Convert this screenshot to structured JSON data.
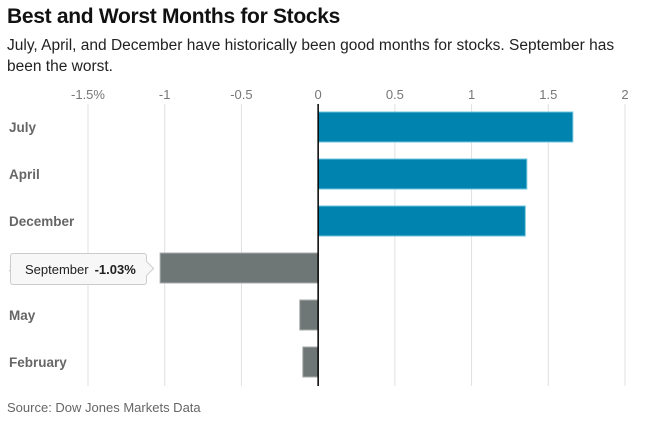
{
  "chart_data": {
    "type": "bar",
    "orientation": "horizontal",
    "title": "Best and Worst Months for Stocks",
    "subtitle": "July, April, and December have historically been good months for stocks. September has been the worst.",
    "source": "Source: Dow Jones Markets Data",
    "xlabel": "",
    "ylabel": "",
    "xlim": [
      -1.5,
      2
    ],
    "xticks": [
      -1.5,
      -1,
      -0.5,
      0,
      0.5,
      1,
      1.5,
      2
    ],
    "xtick_labels": [
      "-1.5%",
      "-1",
      "-0.5",
      "0",
      "0.5",
      "1",
      "1.5",
      "2"
    ],
    "grid": true,
    "categories": [
      "July",
      "April",
      "December",
      "September",
      "May",
      "February"
    ],
    "values": [
      1.66,
      1.36,
      1.35,
      -1.03,
      -0.12,
      -0.1
    ],
    "colors": {
      "positive": "#0083ae",
      "negative": "#6f7676",
      "positive_stroke": "#6ec3dd",
      "negative_stroke": "#a9adad",
      "grid": "#e0e0e0",
      "zero_line": "#000000"
    },
    "tooltip": {
      "category": "September",
      "value": "-1.03%"
    }
  }
}
